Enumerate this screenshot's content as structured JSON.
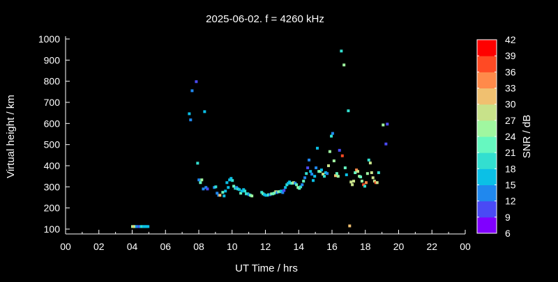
{
  "chart_data": {
    "type": "scatter",
    "title": "2025-06-02. f = 4260 kHz",
    "xlabel": "UT Time / hrs",
    "ylabel": "Virtual height / km",
    "xlim": [
      0,
      24
    ],
    "ylim": [
      75,
      1000
    ],
    "xticks": [
      "00",
      "02",
      "04",
      "06",
      "08",
      "10",
      "12",
      "14",
      "16",
      "18",
      "20",
      "22",
      "00"
    ],
    "yticks": [
      100,
      200,
      300,
      400,
      500,
      600,
      700,
      800,
      900,
      1000
    ],
    "colorbar": {
      "label": "SNR / dB",
      "ticks": [
        6,
        9,
        12,
        15,
        18,
        21,
        24,
        27,
        30,
        33,
        36,
        39,
        42
      ],
      "colors": [
        "#8000ff",
        "#4a4af5",
        "#2088ee",
        "#0bc0e6",
        "#33dfd0",
        "#66f8c0",
        "#a0f7a0",
        "#c8e28a",
        "#f0c070",
        "#ff8a4a",
        "#ff4a24",
        "#ff0000"
      ]
    },
    "grid": false,
    "points_fields": [
      "hour",
      "height_km",
      "snr_db"
    ],
    "points": [
      [
        4.02,
        112,
        25
      ],
      [
        4.1,
        112,
        31
      ],
      [
        4.18,
        112,
        25
      ],
      [
        4.27,
        112,
        13
      ],
      [
        4.35,
        112,
        13
      ],
      [
        4.44,
        112,
        10
      ],
      [
        4.52,
        112,
        16
      ],
      [
        4.6,
        112,
        19
      ],
      [
        4.69,
        112,
        16
      ],
      [
        4.77,
        112,
        16
      ],
      [
        4.86,
        112,
        16
      ],
      [
        4.95,
        112,
        16
      ],
      [
        7.85,
        798,
        10
      ],
      [
        7.6,
        755,
        13
      ],
      [
        7.43,
        646,
        16
      ],
      [
        8.35,
        656,
        16
      ],
      [
        7.51,
        617,
        13
      ],
      [
        7.93,
        412,
        19
      ],
      [
        8.01,
        333,
        13
      ],
      [
        8.18,
        333,
        25
      ],
      [
        8.1,
        320,
        22
      ],
      [
        8.27,
        290,
        13
      ],
      [
        8.43,
        297,
        13
      ],
      [
        8.52,
        290,
        10
      ],
      [
        8.93,
        297,
        13
      ],
      [
        9.02,
        300,
        20
      ],
      [
        9.1,
        270,
        13
      ],
      [
        9.19,
        260,
        13
      ],
      [
        9.27,
        260,
        31
      ],
      [
        9.44,
        274,
        22
      ],
      [
        9.52,
        257,
        16
      ],
      [
        9.6,
        280,
        16
      ],
      [
        9.69,
        320,
        16
      ],
      [
        9.77,
        297,
        16
      ],
      [
        9.85,
        333,
        16
      ],
      [
        9.94,
        340,
        16
      ],
      [
        10.02,
        330,
        19
      ],
      [
        10.1,
        303,
        22
      ],
      [
        10.19,
        293,
        19
      ],
      [
        10.27,
        297,
        13
      ],
      [
        10.35,
        290,
        19
      ],
      [
        10.44,
        287,
        16
      ],
      [
        10.52,
        270,
        22
      ],
      [
        10.6,
        280,
        16
      ],
      [
        10.69,
        287,
        16
      ],
      [
        10.77,
        280,
        19
      ],
      [
        10.85,
        267,
        19
      ],
      [
        10.94,
        267,
        19
      ],
      [
        11.02,
        263,
        13
      ],
      [
        11.1,
        260,
        22
      ],
      [
        11.19,
        257,
        25
      ],
      [
        11.78,
        274,
        19
      ],
      [
        11.86,
        267,
        22
      ],
      [
        11.94,
        263,
        16
      ],
      [
        12.03,
        260,
        16
      ],
      [
        12.12,
        260,
        16
      ],
      [
        12.2,
        263,
        22
      ],
      [
        12.28,
        263,
        13
      ],
      [
        12.37,
        267,
        25
      ],
      [
        12.45,
        267,
        22
      ],
      [
        12.53,
        270,
        22
      ],
      [
        12.62,
        277,
        28
      ],
      [
        12.7,
        273,
        13
      ],
      [
        12.79,
        277,
        25
      ],
      [
        12.87,
        277,
        22
      ],
      [
        12.95,
        280,
        16
      ],
      [
        13.04,
        273,
        13
      ],
      [
        13.12,
        283,
        10
      ],
      [
        13.2,
        297,
        16
      ],
      [
        13.29,
        310,
        19
      ],
      [
        13.37,
        317,
        16
      ],
      [
        13.45,
        323,
        16
      ],
      [
        13.54,
        317,
        19
      ],
      [
        13.62,
        317,
        22
      ],
      [
        13.7,
        320,
        28
      ],
      [
        13.79,
        317,
        13
      ],
      [
        13.87,
        310,
        22
      ],
      [
        13.96,
        297,
        25
      ],
      [
        14.04,
        293,
        22
      ],
      [
        14.12,
        300,
        19
      ],
      [
        14.21,
        310,
        13
      ],
      [
        14.29,
        327,
        22
      ],
      [
        14.37,
        343,
        13
      ],
      [
        14.46,
        363,
        19
      ],
      [
        14.54,
        390,
        10
      ],
      [
        14.62,
        427,
        13
      ],
      [
        14.71,
        373,
        16
      ],
      [
        14.79,
        360,
        13
      ],
      [
        14.87,
        330,
        16
      ],
      [
        14.96,
        350,
        16
      ],
      [
        15.04,
        390,
        13
      ],
      [
        15.12,
        483,
        16
      ],
      [
        15.21,
        373,
        22
      ],
      [
        15.29,
        373,
        25
      ],
      [
        15.37,
        380,
        16
      ],
      [
        15.46,
        360,
        28
      ],
      [
        15.54,
        350,
        19
      ],
      [
        15.62,
        367,
        16
      ],
      [
        15.71,
        363,
        13
      ],
      [
        15.79,
        400,
        28
      ],
      [
        15.87,
        467,
        25
      ],
      [
        15.96,
        540,
        19
      ],
      [
        16.04,
        553,
        13
      ],
      [
        16.12,
        423,
        25
      ],
      [
        16.21,
        353,
        31
      ],
      [
        16.29,
        363,
        22
      ],
      [
        16.37,
        350,
        25
      ],
      [
        16.45,
        473,
        10
      ],
      [
        16.56,
        943,
        19
      ],
      [
        16.62,
        447,
        37
      ],
      [
        16.72,
        877,
        25
      ],
      [
        16.79,
        390,
        22
      ],
      [
        16.87,
        357,
        16
      ],
      [
        16.98,
        660,
        19
      ],
      [
        17.06,
        115,
        31
      ],
      [
        17.14,
        323,
        28
      ],
      [
        17.22,
        310,
        28
      ],
      [
        17.3,
        327,
        28
      ],
      [
        17.39,
        367,
        22
      ],
      [
        17.47,
        380,
        35
      ],
      [
        17.55,
        373,
        28
      ],
      [
        17.64,
        350,
        25
      ],
      [
        17.72,
        347,
        22
      ],
      [
        17.8,
        327,
        25
      ],
      [
        17.89,
        310,
        38
      ],
      [
        17.97,
        303,
        19
      ],
      [
        18.05,
        320,
        35
      ],
      [
        18.13,
        363,
        25
      ],
      [
        18.21,
        427,
        19
      ],
      [
        18.3,
        413,
        28
      ],
      [
        18.38,
        367,
        28
      ],
      [
        18.46,
        343,
        28
      ],
      [
        18.55,
        327,
        28
      ],
      [
        18.63,
        320,
        38
      ],
      [
        18.71,
        320,
        28
      ],
      [
        18.8,
        367,
        19
      ],
      [
        19.07,
        593,
        25
      ],
      [
        19.32,
        597,
        10
      ],
      [
        19.24,
        503,
        10
      ]
    ]
  }
}
